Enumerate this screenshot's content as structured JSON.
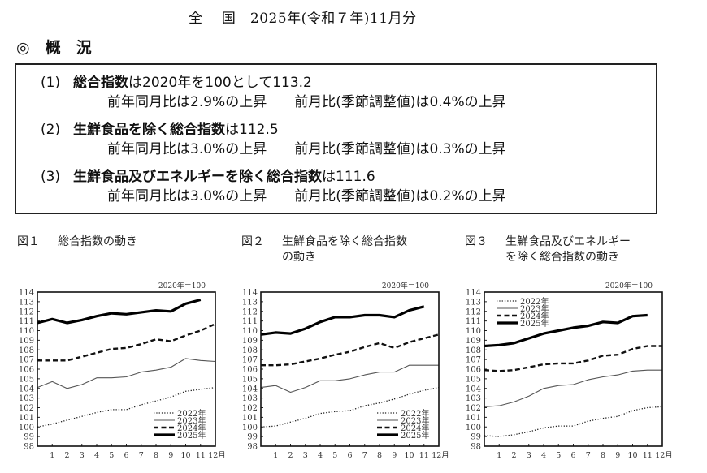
{
  "header": {
    "title": "全　 国　2025年(令和７年)11月分",
    "section_heading": "◎　概　況"
  },
  "summary": [
    {
      "number": "(1)",
      "bold_text": "総合指数",
      "rest_text": "は2020年を100として113.2",
      "yoy": "前年同月比は2.9%の上昇",
      "mom": "前月比(季節調整値)は0.4%の上昇"
    },
    {
      "number": "(2)",
      "bold_text": "生鮮食品を除く総合指数",
      "rest_text": "は112.5",
      "yoy": "前年同月比は3.0%の上昇",
      "mom": "前月比(季節調整値)は0.3%の上昇"
    },
    {
      "number": "(3)",
      "bold_text": "生鮮食品及びエネルギーを除く総合指数",
      "rest_text": "は111.6",
      "yoy": "前年同月比は3.0%の上昇",
      "mom": "前月比(季節調整値)は0.2%の上昇"
    }
  ],
  "figures": [
    {
      "number": "図１",
      "title_line1": "総合指数の動き",
      "title_line2": ""
    },
    {
      "number": "図２",
      "title_line1": "生鮮食品を除く総合指数",
      "title_line2": "の動き"
    },
    {
      "number": "図３",
      "title_line1": "生鮮食品及びエネルギー",
      "title_line2": "を除く総合指数の動き"
    }
  ],
  "chart_data": [
    {
      "type": "line",
      "title": "図１　総合指数の動き",
      "base_note": "2020年＝100",
      "xlabel": "",
      "ylabel": "",
      "x": [
        0,
        1,
        2,
        3,
        4,
        5,
        6,
        7,
        8,
        9,
        10,
        11,
        12
      ],
      "x_tick_labels": [
        "1",
        "2",
        "3",
        "4",
        "5",
        "6",
        "7",
        "8",
        "9",
        "10",
        "11",
        "12月"
      ],
      "ylim": [
        98,
        114
      ],
      "y_ticks": [
        98,
        99,
        100,
        101,
        102,
        103,
        104,
        105,
        106,
        107,
        108,
        109,
        110,
        111,
        112,
        113,
        114
      ],
      "grid": false,
      "legend_position": "lower-right",
      "series": [
        {
          "name": "2022年",
          "style": "dotted",
          "values": [
            100.0,
            100.3,
            100.7,
            101.1,
            101.5,
            101.8,
            101.8,
            102.3,
            102.7,
            103.1,
            103.7,
            103.9,
            104.1
          ]
        },
        {
          "name": "2023年",
          "style": "thin",
          "values": [
            104.1,
            104.7,
            104.0,
            104.4,
            105.1,
            105.1,
            105.2,
            105.7,
            105.9,
            106.2,
            107.1,
            106.9,
            106.8
          ]
        },
        {
          "name": "2024年",
          "style": "dashed",
          "values": [
            106.9,
            106.9,
            106.9,
            107.3,
            107.7,
            108.1,
            108.2,
            108.6,
            109.1,
            108.9,
            109.5,
            110.0,
            110.7
          ]
        },
        {
          "name": "2025年",
          "style": "thick",
          "values": [
            110.8,
            111.2,
            110.8,
            111.1,
            111.5,
            111.8,
            111.7,
            111.9,
            112.1,
            112.0,
            112.8,
            113.2
          ]
        }
      ]
    },
    {
      "type": "line",
      "title": "図２　生鮮食品を除く総合指数の動き",
      "base_note": "2020年＝100",
      "xlabel": "",
      "ylabel": "",
      "x": [
        0,
        1,
        2,
        3,
        4,
        5,
        6,
        7,
        8,
        9,
        10,
        11,
        12
      ],
      "x_tick_labels": [
        "1",
        "2",
        "3",
        "4",
        "5",
        "6",
        "7",
        "8",
        "9",
        "10",
        "11",
        "12月"
      ],
      "ylim": [
        98,
        114
      ],
      "y_ticks": [
        98,
        99,
        100,
        101,
        102,
        103,
        104,
        105,
        106,
        107,
        108,
        109,
        110,
        111,
        112,
        113,
        114
      ],
      "grid": false,
      "legend_position": "lower-right",
      "series": [
        {
          "name": "2022年",
          "style": "dotted",
          "values": [
            100.0,
            100.1,
            100.5,
            100.9,
            101.4,
            101.6,
            101.7,
            102.2,
            102.5,
            102.9,
            103.4,
            103.8,
            104.1
          ]
        },
        {
          "name": "2023年",
          "style": "thin",
          "values": [
            104.1,
            104.3,
            103.6,
            104.1,
            104.8,
            104.8,
            105.0,
            105.4,
            105.7,
            105.7,
            106.4,
            106.4,
            106.4
          ]
        },
        {
          "name": "2024年",
          "style": "dashed",
          "values": [
            106.4,
            106.4,
            106.5,
            106.8,
            107.1,
            107.5,
            107.8,
            108.3,
            108.7,
            108.2,
            108.8,
            109.2,
            109.6
          ]
        },
        {
          "name": "2025年",
          "style": "thick",
          "values": [
            109.6,
            109.8,
            109.7,
            110.2,
            110.9,
            111.4,
            111.4,
            111.6,
            111.6,
            111.4,
            112.1,
            112.5
          ]
        }
      ]
    },
    {
      "type": "line",
      "title": "図３　生鮮食品及びエネルギーを除く総合指数の動き",
      "base_note": "2020年＝100",
      "xlabel": "",
      "ylabel": "",
      "x": [
        0,
        1,
        2,
        3,
        4,
        5,
        6,
        7,
        8,
        9,
        10,
        11,
        12
      ],
      "x_tick_labels": [
        "1",
        "2",
        "3",
        "4",
        "5",
        "6",
        "7",
        "8",
        "9",
        "10",
        "11",
        "12月"
      ],
      "ylim": [
        98,
        114
      ],
      "y_ticks": [
        98,
        99,
        100,
        101,
        102,
        103,
        104,
        105,
        106,
        107,
        108,
        109,
        110,
        111,
        112,
        113,
        114
      ],
      "grid": false,
      "legend_position": "upper-left",
      "series": [
        {
          "name": "2022年",
          "style": "dotted",
          "values": [
            99.1,
            99.0,
            99.2,
            99.5,
            99.9,
            100.1,
            100.1,
            100.6,
            100.9,
            101.1,
            101.7,
            102.0,
            102.1
          ]
        },
        {
          "name": "2023年",
          "style": "thin",
          "values": [
            102.1,
            102.2,
            102.6,
            103.2,
            104.0,
            104.3,
            104.4,
            104.9,
            105.2,
            105.4,
            105.8,
            105.9,
            105.9
          ]
        },
        {
          "name": "2024年",
          "style": "dashed",
          "values": [
            105.9,
            105.8,
            105.9,
            106.2,
            106.5,
            106.6,
            106.6,
            106.9,
            107.4,
            107.5,
            108.1,
            108.4,
            108.4
          ]
        },
        {
          "name": "2025年",
          "style": "thick",
          "values": [
            108.4,
            108.5,
            108.7,
            109.2,
            109.7,
            110.0,
            110.3,
            110.5,
            110.9,
            110.8,
            111.5,
            111.6
          ]
        }
      ]
    }
  ]
}
